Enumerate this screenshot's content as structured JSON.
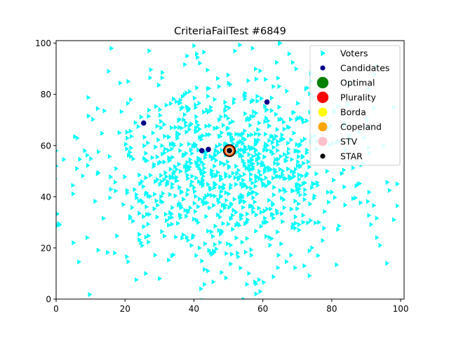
{
  "chart_data": {
    "type": "scatter",
    "title": "CriteriaFailTest #6849",
    "xlabel": "",
    "ylabel": "",
    "xlim": [
      0,
      101
    ],
    "ylim": [
      0,
      101
    ],
    "xticks": [
      0,
      20,
      40,
      60,
      80,
      100
    ],
    "yticks": [
      0,
      20,
      40,
      60,
      80,
      100
    ],
    "tick_labels_x": [
      "0",
      "20",
      "40",
      "60",
      "80",
      "100"
    ],
    "tick_labels_y": [
      "0",
      "20",
      "40",
      "60",
      "80",
      "100"
    ],
    "grid": false,
    "legend_position": "top-right",
    "voters": {
      "name": "Voters",
      "color": "#00ffff",
      "marker": "triangle-right",
      "count_estimate": 1000,
      "distribution": "approximately normal cloud",
      "center": [
        50,
        50
      ],
      "spread": [
        18,
        18
      ],
      "sample_points": [
        [
          16,
          98
        ],
        [
          27,
          97
        ],
        [
          40,
          99
        ],
        [
          38,
          95
        ],
        [
          57,
          98
        ],
        [
          65,
          100
        ],
        [
          93,
          91
        ],
        [
          98,
          75
        ],
        [
          0,
          58
        ],
        [
          1,
          29
        ],
        [
          5,
          22
        ],
        [
          9,
          24
        ],
        [
          17,
          18
        ],
        [
          26,
          10
        ],
        [
          30,
          8
        ],
        [
          42,
          4
        ],
        [
          44,
          11
        ],
        [
          58,
          6
        ],
        [
          58,
          2
        ],
        [
          72,
          13
        ],
        [
          76,
          17
        ],
        [
          94,
          21
        ],
        [
          99,
          45
        ],
        [
          95,
          60
        ],
        [
          89,
          53
        ],
        [
          6,
          51
        ],
        [
          12,
          49
        ],
        [
          0,
          52
        ],
        [
          98,
          31
        ],
        [
          96,
          14
        ]
      ]
    },
    "candidates": {
      "name": "Candidates",
      "color": "#00008b",
      "points": [
        [
          25.4,
          68.8
        ],
        [
          61.2,
          77.0
        ],
        [
          42.3,
          58.0
        ],
        [
          44.2,
          58.5
        ],
        [
          50.3,
          58.0
        ]
      ]
    },
    "winners": [
      {
        "name": "Optimal",
        "color": "#008000",
        "x": 50.3,
        "y": 58.0
      },
      {
        "name": "Plurality",
        "color": "#ff0000",
        "x": 50.3,
        "y": 58.0
      },
      {
        "name": "Borda",
        "color": "#ffff00",
        "x": 50.3,
        "y": 58.0
      },
      {
        "name": "Copeland",
        "color": "#ffa500",
        "x": 50.3,
        "y": 58.0
      },
      {
        "name": "STV",
        "color": "#ffc0cb",
        "x": 50.3,
        "y": 58.0
      },
      {
        "name": "STAR",
        "color": "#000000",
        "x": 50.3,
        "y": 58.0
      }
    ],
    "legend": [
      {
        "label": "Voters",
        "color": "#00ffff",
        "marker": "triangle-right"
      },
      {
        "label": "Candidates",
        "color": "#00008b",
        "marker": "dot-small"
      },
      {
        "label": "Optimal",
        "color": "#008000",
        "marker": "dot-large"
      },
      {
        "label": "Plurality",
        "color": "#ff0000",
        "marker": "dot-large"
      },
      {
        "label": "Borda",
        "color": "#ffff00",
        "marker": "dot-medium"
      },
      {
        "label": "Copeland",
        "color": "#ffa500",
        "marker": "dot-medium"
      },
      {
        "label": "STV",
        "color": "#ffc0cb",
        "marker": "dot-medium"
      },
      {
        "label": "STAR",
        "color": "#000000",
        "marker": "dot-small"
      }
    ]
  }
}
